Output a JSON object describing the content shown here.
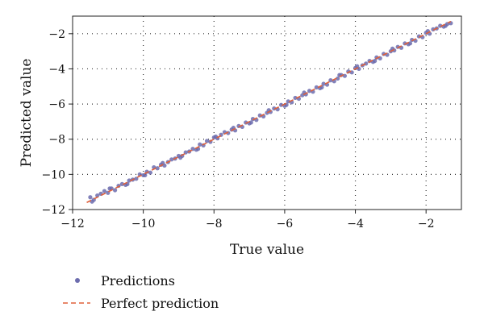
{
  "chart_data": {
    "type": "scatter",
    "xlabel": "True value",
    "ylabel": "Predicted value",
    "xlim": [
      -12,
      -1
    ],
    "ylim": [
      -12,
      -1
    ],
    "x_ticks": [
      -12,
      -10,
      -8,
      -6,
      -4,
      -2
    ],
    "y_ticks": [
      -12,
      -10,
      -8,
      -6,
      -4,
      -2
    ],
    "grid": true,
    "legend_position": "bottom-left",
    "series": [
      {
        "name": "Predictions",
        "kind": "scatter",
        "color": "#6c6cae",
        "x": [
          -11.5,
          -11.4,
          -11.3,
          -11.2,
          -11.1,
          -11.0,
          -10.9,
          -10.8,
          -10.7,
          -10.6,
          -10.5,
          -10.4,
          -10.3,
          -10.2,
          -10.1,
          -10.0,
          -9.9,
          -9.8,
          -9.7,
          -9.6,
          -9.5,
          -9.4,
          -9.3,
          -9.2,
          -9.1,
          -9.0,
          -8.9,
          -8.8,
          -8.7,
          -8.6,
          -8.5,
          -8.4,
          -8.3,
          -8.2,
          -8.1,
          -8.0,
          -7.9,
          -7.8,
          -7.7,
          -7.6,
          -7.5,
          -7.4,
          -7.3,
          -7.2,
          -7.1,
          -7.0,
          -6.9,
          -6.8,
          -6.7,
          -6.6,
          -6.5,
          -6.4,
          -6.3,
          -6.2,
          -6.1,
          -6.0,
          -5.9,
          -5.8,
          -5.7,
          -5.6,
          -5.5,
          -5.4,
          -5.3,
          -5.2,
          -5.1,
          -5.0,
          -4.9,
          -4.8,
          -4.7,
          -4.6,
          -4.5,
          -4.4,
          -4.3,
          -4.2,
          -4.1,
          -4.0,
          -3.9,
          -3.8,
          -3.7,
          -3.6,
          -3.5,
          -3.4,
          -3.3,
          -3.2,
          -3.1,
          -3.0,
          -2.9,
          -2.8,
          -2.7,
          -2.6,
          -2.5,
          -2.4,
          -2.3,
          -2.2,
          -2.1,
          -2.0,
          -1.9,
          -1.8,
          -1.7,
          -1.6,
          -1.5,
          -1.4,
          -1.3,
          -11.45,
          -10.95,
          -10.45,
          -9.95,
          -9.45,
          -8.95,
          -8.45,
          -7.95,
          -7.45,
          -6.95,
          -6.45,
          -5.95,
          -5.45,
          -4.95,
          -4.45,
          -3.95,
          -3.45,
          -2.95,
          -2.45,
          -1.95,
          -1.45
        ],
        "y": [
          -11.3,
          -11.45,
          -11.2,
          -11.1,
          -10.95,
          -11.05,
          -10.8,
          -10.9,
          -10.65,
          -10.55,
          -10.6,
          -10.35,
          -10.3,
          -10.25,
          -10.0,
          -10.05,
          -9.85,
          -9.9,
          -9.6,
          -9.65,
          -9.45,
          -9.5,
          -9.3,
          -9.15,
          -9.1,
          -8.95,
          -8.95,
          -8.75,
          -8.7,
          -8.55,
          -8.6,
          -8.3,
          -8.35,
          -8.1,
          -8.15,
          -7.9,
          -7.95,
          -7.75,
          -7.6,
          -7.65,
          -7.45,
          -7.5,
          -7.25,
          -7.3,
          -7.05,
          -7.1,
          -6.85,
          -6.9,
          -6.65,
          -6.7,
          -6.5,
          -6.45,
          -6.25,
          -6.3,
          -6.05,
          -6.1,
          -5.85,
          -5.9,
          -5.65,
          -5.7,
          -5.5,
          -5.45,
          -5.25,
          -5.3,
          -5.05,
          -5.1,
          -4.85,
          -4.9,
          -4.65,
          -4.7,
          -4.55,
          -4.35,
          -4.4,
          -4.15,
          -4.2,
          -3.95,
          -4.0,
          -3.8,
          -3.7,
          -3.55,
          -3.6,
          -3.35,
          -3.4,
          -3.15,
          -3.2,
          -3.0,
          -2.95,
          -2.75,
          -2.8,
          -2.55,
          -2.6,
          -2.35,
          -2.4,
          -2.15,
          -2.2,
          -1.95,
          -2.0,
          -1.75,
          -1.7,
          -1.55,
          -1.6,
          -1.45,
          -1.4,
          -11.55,
          -10.8,
          -10.55,
          -10.05,
          -9.35,
          -9.05,
          -8.55,
          -7.85,
          -7.35,
          -7.05,
          -6.35,
          -6.05,
          -5.35,
          -5.05,
          -4.35,
          -3.85,
          -3.55,
          -2.85,
          -2.55,
          -1.85,
          -1.55
        ]
      },
      {
        "name": "Perfect prediction",
        "kind": "line",
        "style": "dashed",
        "color": "#e0603a",
        "x": [
          -11.6,
          -1.3
        ],
        "y": [
          -11.6,
          -1.3
        ]
      }
    ]
  }
}
